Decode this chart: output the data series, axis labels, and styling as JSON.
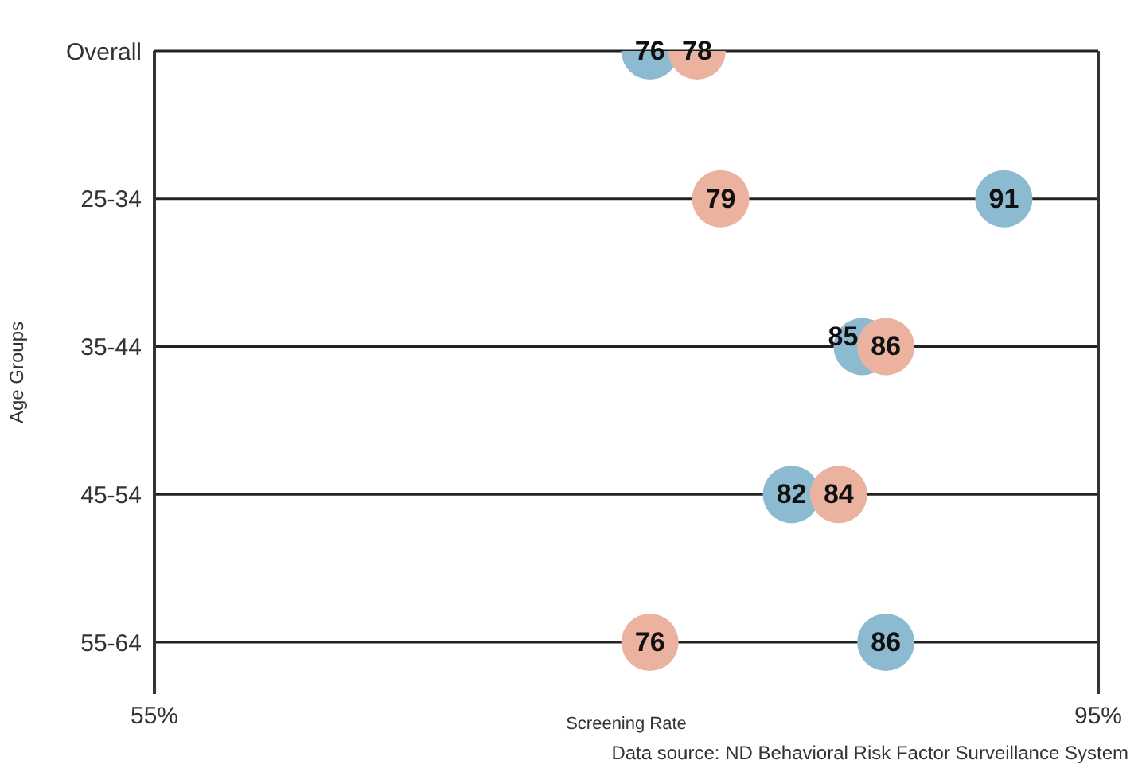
{
  "chart_data": {
    "type": "scatter",
    "orientation": "horizontal",
    "xlabel": "Screening Rate",
    "ylabel": "Age Groups",
    "categories": [
      "Overall",
      "25-34",
      "35-44",
      "45-54",
      "55-64"
    ],
    "series": [
      {
        "color": "#8cbad1",
        "values": [
          76,
          91,
          85,
          82,
          86
        ]
      },
      {
        "color": "#ecb2a0",
        "values": [
          78,
          79,
          86,
          84,
          76
        ]
      }
    ],
    "xlim": [
      55,
      95
    ],
    "xticks": [
      {
        "value": 55,
        "label": "55%"
      },
      {
        "value": 95,
        "label": "95%"
      }
    ],
    "grid": "y",
    "marker": "circle",
    "data_labels": true,
    "annotations": [
      "Data source: ND Behavioral Risk Factor Surveillance System"
    ]
  }
}
